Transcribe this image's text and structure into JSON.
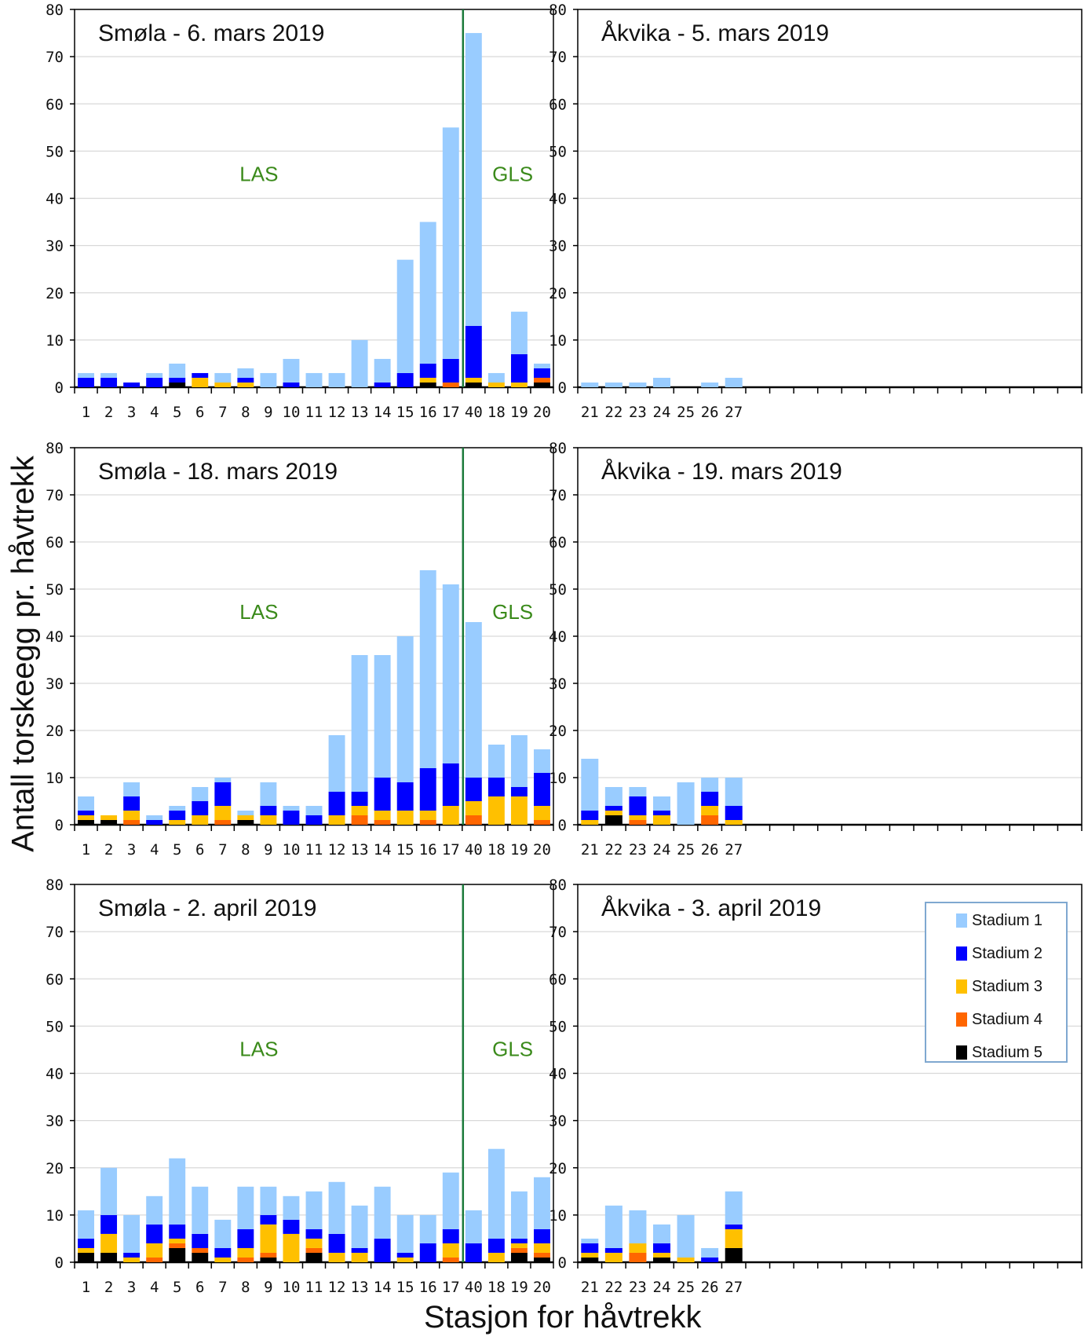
{
  "chart_data": {
    "type": "bar",
    "stacked": true,
    "ylabel": "Antall torskeegg pr. håvtrekk",
    "xlabel": "Stasjon for håvtrekk",
    "ylim": [
      0,
      80
    ],
    "yticks": [
      0,
      10,
      20,
      30,
      40,
      50,
      60,
      70,
      80
    ],
    "grid": true,
    "series_names": [
      "Stadium 1",
      "Stadium 2",
      "Stadium 3",
      "Stadium 4",
      "Stadium 5"
    ],
    "series_colors": [
      "#99ccff",
      "#0000ff",
      "#ffc000",
      "#ff6600",
      "#000000"
    ],
    "legend": {
      "placement": "bottom-right panel, top-right",
      "entries": [
        "Stadium 1",
        "Stadium 2",
        "Stadium 3",
        "Stadium 4",
        "Stadium 5"
      ]
    },
    "panels": [
      {
        "id": "smola-1",
        "title": "Smøla - 6. mars 2019",
        "categories": [
          "1",
          "2",
          "3",
          "4",
          "5",
          "6",
          "7",
          "8",
          "9",
          "10",
          "11",
          "12",
          "13",
          "14",
          "15",
          "16",
          "17",
          "40",
          "18",
          "19",
          "20"
        ],
        "total_slots": 21,
        "divider_after_index": 17,
        "region_labels": [
          "LAS",
          "GLS"
        ],
        "series": [
          {
            "name": "Stadium 1",
            "values": [
              1,
              1,
              0,
              1,
              3,
              0,
              2,
              2,
              3,
              5,
              3,
              3,
              10,
              5,
              24,
              30,
              49,
              62,
              2,
              9,
              1
            ]
          },
          {
            "name": "Stadium 2",
            "values": [
              2,
              2,
              1,
              2,
              1,
              1,
              0,
              1,
              0,
              1,
              0,
              0,
              0,
              1,
              3,
              3,
              5,
              11,
              0,
              6,
              2
            ]
          },
          {
            "name": "Stadium 3",
            "values": [
              0,
              0,
              0,
              0,
              0,
              2,
              1,
              1,
              0,
              0,
              0,
              0,
              0,
              0,
              0,
              1,
              0,
              1,
              1,
              1,
              0
            ]
          },
          {
            "name": "Stadium 4",
            "values": [
              0,
              0,
              0,
              0,
              0,
              0,
              0,
              0,
              0,
              0,
              0,
              0,
              0,
              0,
              0,
              0,
              1,
              0,
              0,
              0,
              1
            ]
          },
          {
            "name": "Stadium 5",
            "values": [
              0,
              0,
              0,
              0,
              1,
              0,
              0,
              0,
              0,
              0,
              0,
              0,
              0,
              0,
              0,
              1,
              0,
              1,
              0,
              0,
              1
            ]
          }
        ]
      },
      {
        "id": "akvika-1",
        "title": "Åkvika - 5. mars 2019",
        "categories": [
          "21",
          "22",
          "23",
          "24",
          "25",
          "26",
          "27"
        ],
        "total_slots": 21,
        "series": [
          {
            "name": "Stadium 1",
            "values": [
              1,
              1,
              1,
              2,
              0,
              1,
              2
            ]
          },
          {
            "name": "Stadium 2",
            "values": [
              0,
              0,
              0,
              0,
              0,
              0,
              0
            ]
          },
          {
            "name": "Stadium 3",
            "values": [
              0,
              0,
              0,
              0,
              0,
              0,
              0
            ]
          },
          {
            "name": "Stadium 4",
            "values": [
              0,
              0,
              0,
              0,
              0,
              0,
              0
            ]
          },
          {
            "name": "Stadium 5",
            "values": [
              0,
              0,
              0,
              0,
              0,
              0,
              0
            ]
          }
        ]
      },
      {
        "id": "smola-2",
        "title": "Smøla - 18. mars 2019",
        "categories": [
          "1",
          "2",
          "3",
          "4",
          "5",
          "6",
          "7",
          "8",
          "9",
          "10",
          "11",
          "12",
          "13",
          "14",
          "15",
          "16",
          "17",
          "40",
          "18",
          "19",
          "20"
        ],
        "total_slots": 21,
        "divider_after_index": 17,
        "region_labels": [
          "LAS",
          "GLS"
        ],
        "series": [
          {
            "name": "Stadium 1",
            "values": [
              3,
              0,
              3,
              1,
              1,
              3,
              1,
              1,
              5,
              1,
              2,
              12,
              29,
              26,
              31,
              42,
              38,
              33,
              7,
              11,
              5
            ]
          },
          {
            "name": "Stadium 2",
            "values": [
              1,
              0,
              3,
              1,
              2,
              3,
              5,
              0,
              2,
              3,
              2,
              5,
              3,
              7,
              6,
              9,
              9,
              5,
              4,
              2,
              7
            ]
          },
          {
            "name": "Stadium 3",
            "values": [
              1,
              1,
              2,
              0,
              1,
              2,
              3,
              1,
              2,
              0,
              0,
              2,
              2,
              2,
              3,
              2,
              4,
              3,
              6,
              6,
              3
            ]
          },
          {
            "name": "Stadium 4",
            "values": [
              0,
              0,
              1,
              0,
              0,
              0,
              1,
              0,
              0,
              0,
              0,
              0,
              2,
              1,
              0,
              1,
              0,
              2,
              0,
              0,
              1
            ]
          },
          {
            "name": "Stadium 5",
            "values": [
              1,
              1,
              0,
              0,
              0,
              0,
              0,
              1,
              0,
              0,
              0,
              0,
              0,
              0,
              0,
              0,
              0,
              0,
              0,
              0,
              0
            ]
          }
        ]
      },
      {
        "id": "akvika-2",
        "title": "Åkvika - 19. mars 2019",
        "categories": [
          "21",
          "22",
          "23",
          "24",
          "25",
          "26",
          "27"
        ],
        "total_slots": 21,
        "series": [
          {
            "name": "Stadium 1",
            "values": [
              11,
              4,
              2,
              3,
              9,
              3,
              6
            ]
          },
          {
            "name": "Stadium 2",
            "values": [
              2,
              1,
              4,
              1,
              0,
              3,
              3
            ]
          },
          {
            "name": "Stadium 3",
            "values": [
              1,
              1,
              1,
              2,
              0,
              2,
              1
            ]
          },
          {
            "name": "Stadium 4",
            "values": [
              0,
              0,
              1,
              0,
              0,
              2,
              0
            ]
          },
          {
            "name": "Stadium 5",
            "values": [
              0,
              2,
              0,
              0,
              0,
              0,
              0
            ]
          }
        ]
      },
      {
        "id": "smola-3",
        "title": "Smøla - 2. april 2019",
        "categories": [
          "1",
          "2",
          "3",
          "4",
          "5",
          "6",
          "7",
          "8",
          "9",
          "10",
          "11",
          "12",
          "13",
          "14",
          "15",
          "16",
          "17",
          "40",
          "18",
          "19",
          "20"
        ],
        "total_slots": 21,
        "divider_after_index": 17,
        "region_labels": [
          "LAS",
          "GLS"
        ],
        "series": [
          {
            "name": "Stadium 1",
            "values": [
              6,
              10,
              8,
              6,
              14,
              10,
              6,
              9,
              6,
              5,
              8,
              11,
              9,
              11,
              8,
              6,
              12,
              7,
              19,
              10,
              11
            ]
          },
          {
            "name": "Stadium 2",
            "values": [
              2,
              4,
              1,
              4,
              3,
              3,
              2,
              4,
              2,
              3,
              2,
              4,
              1,
              5,
              1,
              4,
              3,
              4,
              3,
              1,
              3
            ]
          },
          {
            "name": "Stadium 3",
            "values": [
              1,
              4,
              1,
              3,
              1,
              0,
              1,
              2,
              6,
              6,
              2,
              2,
              2,
              0,
              1,
              0,
              3,
              0,
              2,
              1,
              2
            ]
          },
          {
            "name": "Stadium 4",
            "values": [
              0,
              0,
              0,
              1,
              1,
              1,
              0,
              1,
              1,
              0,
              1,
              0,
              0,
              0,
              0,
              0,
              1,
              0,
              0,
              1,
              1
            ]
          },
          {
            "name": "Stadium 5",
            "values": [
              2,
              2,
              0,
              0,
              3,
              2,
              0,
              0,
              1,
              0,
              2,
              0,
              0,
              0,
              0,
              0,
              0,
              0,
              0,
              2,
              1
            ]
          }
        ]
      },
      {
        "id": "akvika-3",
        "title": "Åkvika - 3. april 2019",
        "categories": [
          "21",
          "22",
          "23",
          "24",
          "25",
          "26",
          "27"
        ],
        "total_slots": 21,
        "series": [
          {
            "name": "Stadium 1",
            "values": [
              1,
              9,
              7,
              4,
              9,
              2,
              7
            ]
          },
          {
            "name": "Stadium 2",
            "values": [
              2,
              1,
              0,
              2,
              0,
              1,
              1
            ]
          },
          {
            "name": "Stadium 3",
            "values": [
              1,
              2,
              2,
              1,
              1,
              0,
              4
            ]
          },
          {
            "name": "Stadium 4",
            "values": [
              0,
              0,
              2,
              0,
              0,
              0,
              0
            ]
          },
          {
            "name": "Stadium 5",
            "values": [
              1,
              0,
              0,
              1,
              0,
              0,
              3
            ]
          }
        ]
      }
    ]
  }
}
